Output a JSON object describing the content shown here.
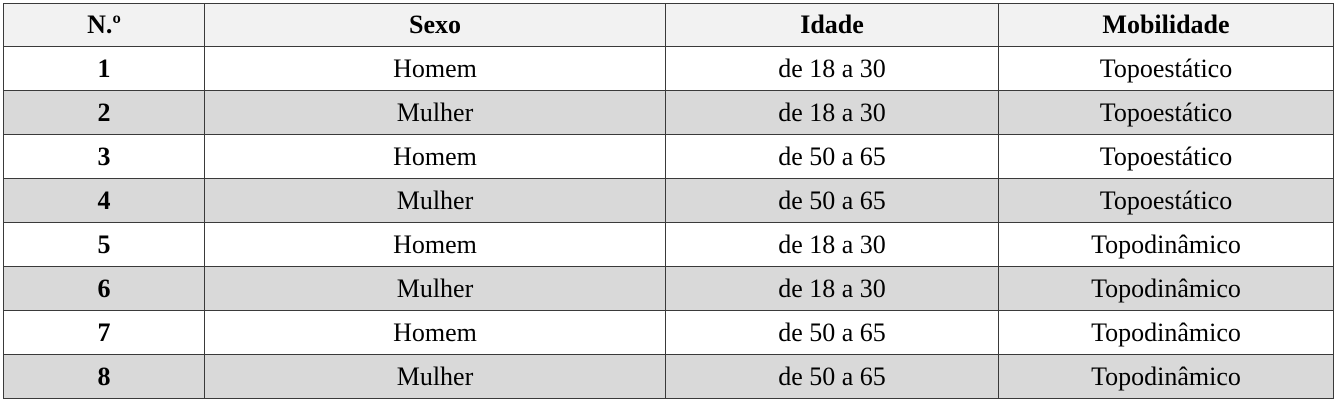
{
  "table": {
    "headers": [
      "N.º",
      "Sexo",
      "Idade",
      "Mobilidade"
    ],
    "rows": [
      [
        "1",
        "Homem",
        "de 18 a 30",
        "Topoestático"
      ],
      [
        "2",
        "Mulher",
        "de 18 a 30",
        "Topoestático"
      ],
      [
        "3",
        "Homem",
        "de 50 a 65",
        "Topoestático"
      ],
      [
        "4",
        "Mulher",
        "de 50 a 65",
        "Topoestático"
      ],
      [
        "5",
        "Homem",
        "de 18 a 30",
        "Topodinâmico"
      ],
      [
        "6",
        "Mulher",
        "de 18 a 30",
        "Topodinâmico"
      ],
      [
        "7",
        "Homem",
        "de 50 a 65",
        "Topodinâmico"
      ],
      [
        "8",
        "Mulher",
        "de 50 a 65",
        "Topodinâmico"
      ]
    ],
    "colors": {
      "header_bg": "#f2f2f2",
      "shaded_row_bg": "#d9d9d9",
      "border": "#3a3a3a"
    }
  }
}
